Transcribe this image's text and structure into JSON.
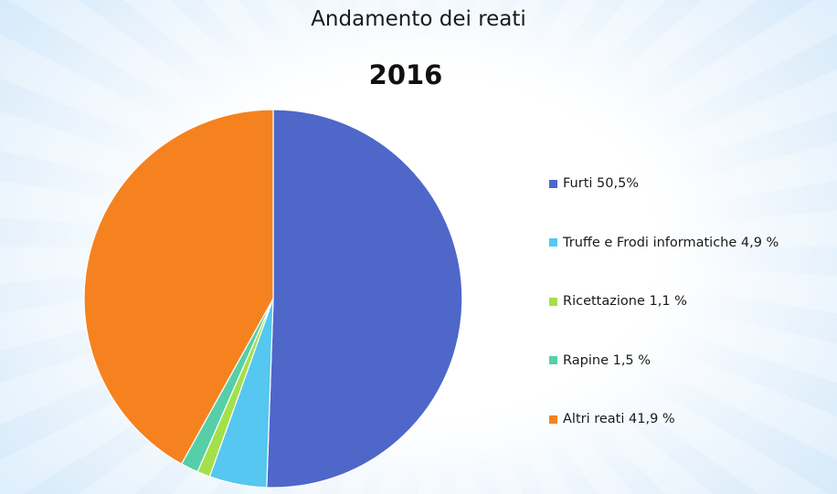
{
  "chart_data": {
    "type": "pie",
    "title": "Andamento dei reati",
    "subtitle": "2016",
    "legend_position": "right",
    "series": [
      {
        "name": "Furti 50,5%",
        "value": 50.5,
        "color": "#4f67c9"
      },
      {
        "name": "Truffe e Frodi informatiche 4,9 %",
        "value": 4.9,
        "color": "#55c7f0"
      },
      {
        "name": "Ricettazione 1,1 %",
        "value": 1.1,
        "color": "#a4e04a"
      },
      {
        "name": "Rapine 1,5 %",
        "value": 1.5,
        "color": "#56cfa8"
      },
      {
        "name": "Altri reati 41,9 %",
        "value": 41.9,
        "color": "#f5821f"
      }
    ]
  }
}
